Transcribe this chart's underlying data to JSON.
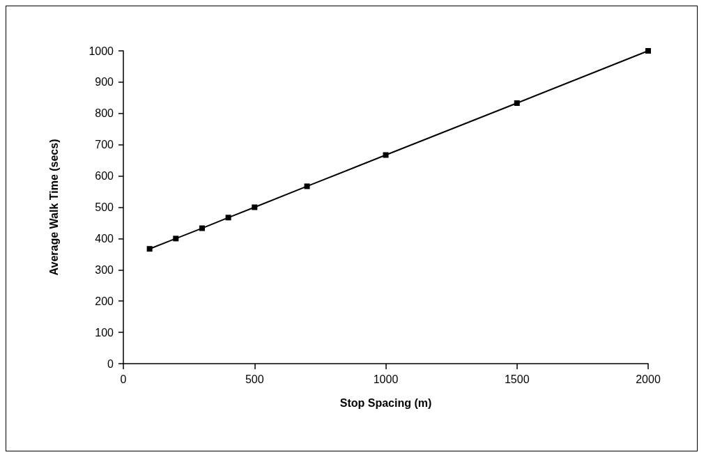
{
  "chart_data": {
    "type": "line",
    "xlabel": "Stop Spacing (m)",
    "ylabel": "Average Walk Time (secs)",
    "x": [
      100,
      200,
      300,
      400,
      500,
      700,
      1000,
      1500,
      2000
    ],
    "series": [
      {
        "color": "#000000",
        "values": [
          367,
          400,
          433,
          467,
          500,
          567,
          667,
          833,
          1000
        ]
      }
    ],
    "xlim": [
      0,
      2000
    ],
    "xticks": [
      0,
      500,
      1000,
      1500,
      2000
    ],
    "ylim": [
      0,
      1000
    ],
    "yticks": [
      0,
      100,
      200,
      300,
      400,
      500,
      600,
      700,
      800,
      900,
      1000
    ],
    "grid": false,
    "marker": "square",
    "line_style": "solid"
  }
}
